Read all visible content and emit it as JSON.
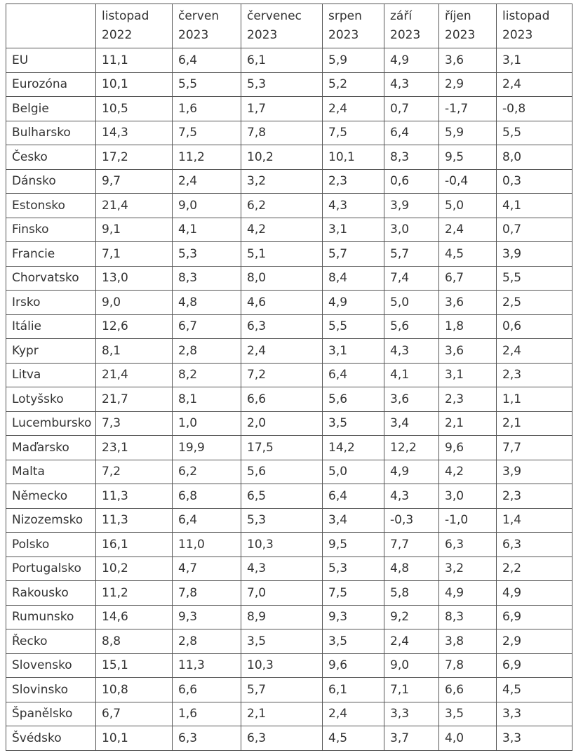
{
  "table": {
    "headers": [
      {
        "line1": "",
        "line2": ""
      },
      {
        "line1": "listopad",
        "line2": "2022"
      },
      {
        "line1": "červen",
        "line2": "2023"
      },
      {
        "line1": "červenec",
        "line2": "2023"
      },
      {
        "line1": "srpen",
        "line2": "2023"
      },
      {
        "line1": "září",
        "line2": "2023"
      },
      {
        "line1": "říjen",
        "line2": "2023"
      },
      {
        "line1": "listopad",
        "line2": "2023"
      }
    ],
    "rows": [
      [
        "EU",
        "11,1",
        "6,4",
        "6,1",
        "5,9",
        "4,9",
        "3,6",
        "3,1"
      ],
      [
        "Eurozóna",
        "10,1",
        "5,5",
        "5,3",
        "5,2",
        "4,3",
        "2,9",
        "2,4"
      ],
      [
        "Belgie",
        "10,5",
        "1,6",
        "1,7",
        "2,4",
        "0,7",
        "-1,7",
        "-0,8"
      ],
      [
        "Bulharsko",
        "14,3",
        "7,5",
        "7,8",
        "7,5",
        "6,4",
        "5,9",
        "5,5"
      ],
      [
        "Česko",
        "17,2",
        "11,2",
        "10,2",
        "10,1",
        "8,3",
        "9,5",
        "8,0"
      ],
      [
        "Dánsko",
        "9,7",
        "2,4",
        "3,2",
        "2,3",
        "0,6",
        "-0,4",
        "0,3"
      ],
      [
        "Estonsko",
        "21,4",
        "9,0",
        "6,2",
        "4,3",
        "3,9",
        "5,0",
        "4,1"
      ],
      [
        "Finsko",
        "9,1",
        "4,1",
        "4,2",
        "3,1",
        "3,0",
        "2,4",
        "0,7"
      ],
      [
        "Francie",
        "7,1",
        "5,3",
        "5,1",
        "5,7",
        "5,7",
        "4,5",
        "3,9"
      ],
      [
        "Chorvatsko",
        "13,0",
        "8,3",
        "8,0",
        "8,4",
        "7,4",
        "6,7",
        "5,5"
      ],
      [
        "Irsko",
        "9,0",
        "4,8",
        "4,6",
        "4,9",
        "5,0",
        "3,6",
        "2,5"
      ],
      [
        "Itálie",
        "12,6",
        "6,7",
        "6,3",
        "5,5",
        "5,6",
        "1,8",
        "0,6"
      ],
      [
        "Kypr",
        "8,1",
        "2,8",
        "2,4",
        "3,1",
        "4,3",
        "3,6",
        "2,4"
      ],
      [
        "Litva",
        "21,4",
        "8,2",
        "7,2",
        "6,4",
        "4,1",
        "3,1",
        "2,3"
      ],
      [
        "Lotyšsko",
        "21,7",
        "8,1",
        "6,6",
        "5,6",
        "3,6",
        "2,3",
        "1,1"
      ],
      [
        "Lucembursko",
        "7,3",
        "1,0",
        "2,0",
        "3,5",
        "3,4",
        "2,1",
        "2,1"
      ],
      [
        "Maďarsko",
        "23,1",
        "19,9",
        "17,5",
        "14,2",
        "12,2",
        "9,6",
        "7,7"
      ],
      [
        "Malta",
        "7,2",
        "6,2",
        "5,6",
        "5,0",
        "4,9",
        "4,2",
        "3,9"
      ],
      [
        "Německo",
        "11,3",
        "6,8",
        "6,5",
        "6,4",
        "4,3",
        "3,0",
        "2,3"
      ],
      [
        "Nizozemsko",
        "11,3",
        "6,4",
        "5,3",
        "3,4",
        "-0,3",
        "-1,0",
        "1,4"
      ],
      [
        "Polsko",
        "16,1",
        "11,0",
        "10,3",
        "9,5",
        "7,7",
        "6,3",
        "6,3"
      ],
      [
        "Portugalsko",
        "10,2",
        "4,7",
        "4,3",
        "5,3",
        "4,8",
        "3,2",
        "2,2"
      ],
      [
        "Rakousko",
        "11,2",
        "7,8",
        "7,0",
        "7,5",
        "5,8",
        "4,9",
        "4,9"
      ],
      [
        "Rumunsko",
        "14,6",
        "9,3",
        "8,9",
        "9,3",
        "9,2",
        "8,3",
        "6,9"
      ],
      [
        "Řecko",
        "8,8",
        "2,8",
        "3,5",
        "3,5",
        "2,4",
        "3,8",
        "2,9"
      ],
      [
        "Slovensko",
        "15,1",
        "11,3",
        "10,3",
        "9,6",
        "9,0",
        "7,8",
        "6,9"
      ],
      [
        "Slovinsko",
        "10,8",
        "6,6",
        "5,7",
        "6,1",
        "7,1",
        "6,6",
        "4,5"
      ],
      [
        "Španělsko",
        "6,7",
        "1,6",
        "2,1",
        "2,4",
        "3,3",
        "3,5",
        "3,3"
      ],
      [
        "Švédsko",
        "10,1",
        "6,3",
        "6,3",
        "4,5",
        "3,7",
        "4,0",
        "3,3"
      ]
    ]
  }
}
